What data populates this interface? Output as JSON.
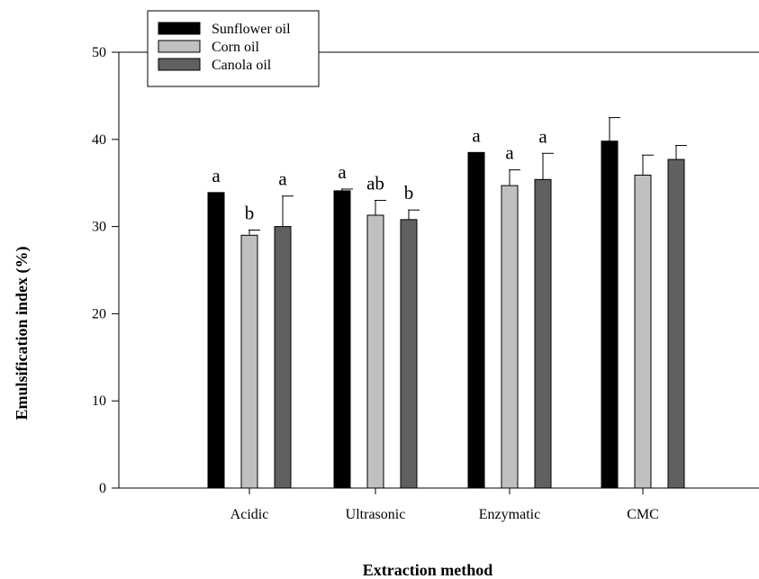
{
  "chart_data": {
    "type": "bar",
    "title": "",
    "xlabel": "Extraction method",
    "ylabel": "Emulsification index (%)",
    "ylim": [
      0,
      50
    ],
    "yticks": [
      0,
      10,
      20,
      30,
      40,
      50
    ],
    "categories": [
      "Acidic",
      "Ultrasonic",
      "Enzymatic",
      "CMC"
    ],
    "series": [
      {
        "name": "Sunflower oil",
        "color": "#000000",
        "values": [
          33.9,
          34.1,
          38.5,
          39.8
        ],
        "errors": [
          0.0,
          0.2,
          0.0,
          2.7
        ],
        "labels": [
          "a",
          "a",
          "a",
          ""
        ]
      },
      {
        "name": "Corn oil",
        "color": "#c0c0c0",
        "values": [
          29.0,
          31.3,
          34.7,
          35.9
        ],
        "errors": [
          0.6,
          1.7,
          1.8,
          2.3
        ],
        "labels": [
          "b",
          "ab",
          "a",
          ""
        ]
      },
      {
        "name": "Canola oil",
        "color": "#606060",
        "values": [
          30.0,
          30.8,
          35.4,
          37.7
        ],
        "errors": [
          3.5,
          1.1,
          3.0,
          1.6
        ],
        "labels": [
          "a",
          "b",
          "a",
          ""
        ]
      }
    ],
    "legend_position": "top-left",
    "grid": false
  }
}
